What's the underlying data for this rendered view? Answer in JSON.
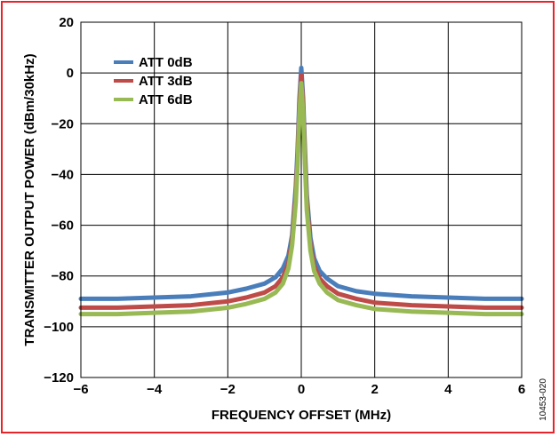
{
  "figure_id": "10453-020",
  "chart_data": {
    "type": "line",
    "title": "",
    "xlabel": "FREQUENCY OFFSET (MHz)",
    "ylabel": "TRANSMITTER OUTPUT POWER (dBm/30kHz)",
    "xlim": [
      -6,
      6
    ],
    "ylim": [
      -120,
      20
    ],
    "x_ticks": [
      -6,
      -4,
      -2,
      0,
      2,
      4,
      6
    ],
    "y_ticks": [
      20,
      0,
      -20,
      -40,
      -60,
      -80,
      -100,
      -120
    ],
    "x_tick_labels": [
      "−6",
      "−4",
      "−2",
      "0",
      "2",
      "4",
      "6"
    ],
    "y_tick_labels": [
      "20",
      "0",
      "−20",
      "−40",
      "−60",
      "−80",
      "−100",
      "−120"
    ],
    "grid": true,
    "legend_position": "top-left",
    "series": [
      {
        "name": "ATT 0dB",
        "color": "#4a7ebb",
        "x": [
          -6,
          -5,
          -4,
          -3,
          -2,
          -1.5,
          -1,
          -0.7,
          -0.5,
          -0.35,
          -0.25,
          -0.15,
          -0.1,
          -0.05,
          0,
          0.05,
          0.1,
          0.15,
          0.25,
          0.35,
          0.5,
          0.7,
          1,
          1.5,
          2,
          3,
          4,
          5,
          6
        ],
        "y": [
          -89,
          -89,
          -88.5,
          -88,
          -86.5,
          -85,
          -83,
          -80.5,
          -77,
          -72,
          -64,
          -45,
          -30,
          -10,
          2,
          -10,
          -30,
          -48,
          -65,
          -73,
          -78,
          -81,
          -84,
          -86,
          -87,
          -88,
          -88.5,
          -89,
          -89
        ]
      },
      {
        "name": "ATT 3dB",
        "color": "#be4b48",
        "x": [
          -6,
          -5,
          -4,
          -3,
          -2,
          -1.5,
          -1,
          -0.7,
          -0.5,
          -0.35,
          -0.25,
          -0.15,
          -0.1,
          -0.05,
          0,
          0.05,
          0.1,
          0.15,
          0.25,
          0.35,
          0.5,
          0.7,
          1,
          1.5,
          2,
          3,
          4,
          5,
          6
        ],
        "y": [
          -92.5,
          -92.5,
          -92,
          -91.5,
          -90,
          -88.5,
          -86.5,
          -84,
          -80.5,
          -75,
          -66,
          -48,
          -33,
          -13,
          -1,
          -13,
          -33,
          -51,
          -68,
          -76,
          -81,
          -84,
          -87,
          -89,
          -90.5,
          -91.5,
          -92,
          -92.5,
          -92.5
        ]
      },
      {
        "name": "ATT 6dB",
        "color": "#98b954",
        "x": [
          -6,
          -5,
          -4,
          -3,
          -2,
          -1.5,
          -1,
          -0.7,
          -0.5,
          -0.35,
          -0.25,
          -0.15,
          -0.1,
          -0.05,
          0,
          0.05,
          0.1,
          0.15,
          0.25,
          0.35,
          0.5,
          0.7,
          1,
          1.5,
          2,
          3,
          4,
          5,
          6
        ],
        "y": [
          -95,
          -95,
          -94.5,
          -94,
          -92.5,
          -91,
          -89,
          -86.5,
          -83,
          -77,
          -68,
          -51,
          -36,
          -16,
          -4,
          -16,
          -36,
          -54,
          -70,
          -78,
          -83,
          -86.5,
          -89.5,
          -91.5,
          -93,
          -94,
          -94.5,
          -95,
          -95
        ]
      }
    ]
  }
}
